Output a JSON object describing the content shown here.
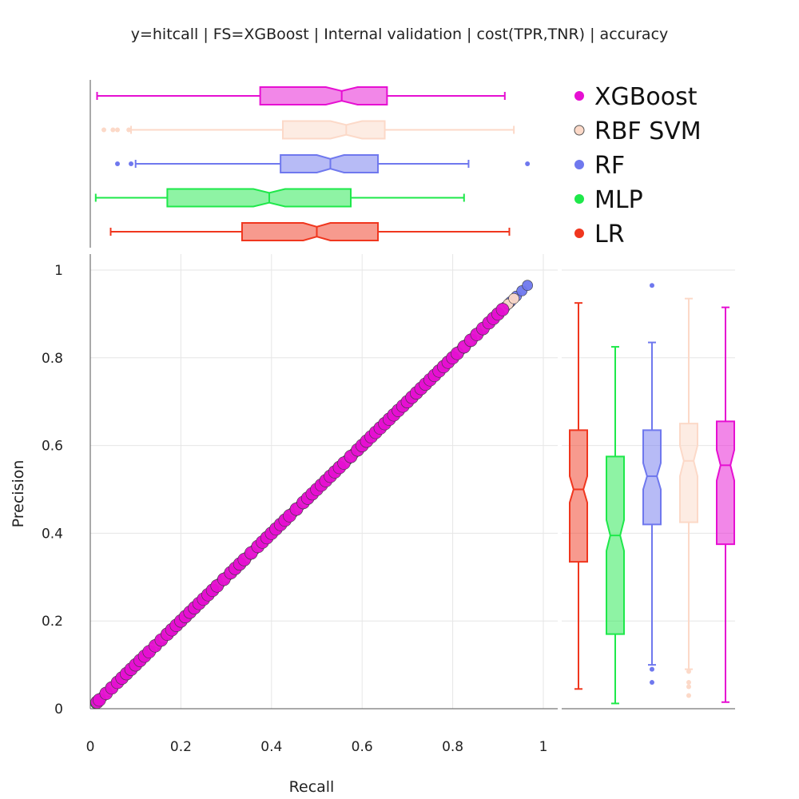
{
  "chart_data": {
    "type": "scatter",
    "title": "y=hitcall | FS=XGBoost | Internal validation | cost(TPR,TNR) | accuracy",
    "xlabel": "Recall",
    "ylabel": "Precision",
    "xlim": [
      -0.01,
      1.03
    ],
    "ylim": [
      -0.01,
      1.04
    ],
    "x_ticks": [
      0,
      0.2,
      0.4,
      0.6,
      0.8,
      1
    ],
    "y_ticks": [
      0,
      0.2,
      0.4,
      0.6,
      0.8,
      1
    ],
    "x_tick_labels": [
      "0",
      "0.2",
      "0.4",
      "0.6",
      "0.8",
      "1"
    ],
    "y_tick_labels": [
      "0",
      "0.2",
      "0.4",
      "0.6",
      "0.8",
      "1"
    ],
    "grid": true,
    "legend_position": "top-right",
    "series": [
      {
        "name": "XGBoost",
        "color": "#e60fd2",
        "box": {
          "min": 0.015,
          "q1": 0.375,
          "median": 0.555,
          "q3": 0.655,
          "max": 0.915,
          "notch_low": 0.52,
          "notch_high": 0.59,
          "outliers": []
        },
        "points": [
          0.015,
          0.02,
          0.035,
          0.06,
          0.08,
          0.11,
          0.13,
          0.17,
          0.2,
          0.23,
          0.25,
          0.28,
          0.31,
          0.34,
          0.37,
          0.39,
          0.41,
          0.44,
          0.47,
          0.5,
          0.53,
          0.56,
          0.59,
          0.62,
          0.65,
          0.68,
          0.7,
          0.72,
          0.75,
          0.78,
          0.81,
          0.84,
          0.88,
          0.91
        ]
      },
      {
        "name": "RBF SVM",
        "color": "#fcd9c8",
        "box": {
          "min": 0.09,
          "q1": 0.425,
          "median": 0.565,
          "q3": 0.65,
          "max": 0.935,
          "notch_low": 0.53,
          "notch_high": 0.6,
          "outliers": [
            0.03,
            0.05,
            0.06,
            0.085
          ]
        },
        "points": [
          0.03,
          0.06,
          0.1,
          0.15,
          0.22,
          0.3,
          0.38,
          0.46,
          0.55,
          0.63,
          0.7,
          0.78,
          0.86,
          0.935
        ]
      },
      {
        "name": "RF",
        "color": "#6f78ee",
        "box": {
          "min": 0.1,
          "q1": 0.42,
          "median": 0.53,
          "q3": 0.635,
          "max": 0.835,
          "notch_low": 0.5,
          "notch_high": 0.56,
          "outliers": [
            0.06,
            0.09,
            0.965
          ]
        },
        "points": [
          0.06,
          0.09,
          0.16,
          0.25,
          0.33,
          0.42,
          0.48,
          0.53,
          0.58,
          0.64,
          0.7,
          0.76,
          0.8,
          0.83,
          0.965
        ]
      },
      {
        "name": "MLP",
        "color": "#1ee84a",
        "box": {
          "min": 0.012,
          "q1": 0.17,
          "median": 0.395,
          "q3": 0.575,
          "max": 0.825,
          "notch_low": 0.36,
          "notch_high": 0.43,
          "outliers": []
        },
        "points": [
          0.012,
          0.05,
          0.1,
          0.17,
          0.25,
          0.32,
          0.4,
          0.47,
          0.53,
          0.58,
          0.64,
          0.7,
          0.76,
          0.82
        ]
      },
      {
        "name": "LR",
        "color": "#f0361e",
        "box": {
          "min": 0.045,
          "q1": 0.335,
          "median": 0.5,
          "q3": 0.635,
          "max": 0.925,
          "notch_low": 0.47,
          "notch_high": 0.53,
          "outliers": []
        },
        "points": [
          0.045,
          0.12,
          0.2,
          0.27,
          0.34,
          0.42,
          0.5,
          0.57,
          0.64,
          0.72,
          0.8,
          0.86,
          0.9,
          0.925
        ]
      }
    ]
  }
}
